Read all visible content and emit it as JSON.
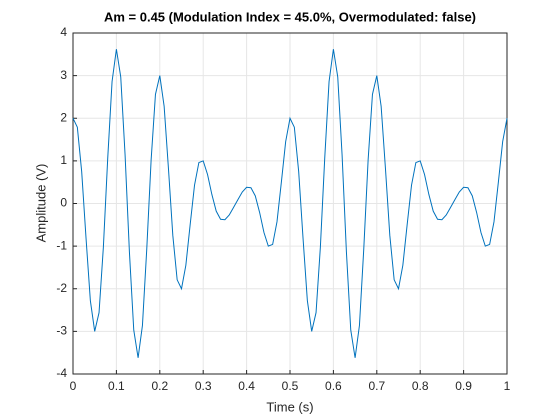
{
  "chart_data": {
    "type": "line",
    "title": "Am = 0.45 (Modulation Index = 45.0%, Overmodulated: false)",
    "x_label": "Time (s)",
    "y_label": "Amplitude (V)",
    "x": [
      0,
      0.01,
      0.02,
      0.03,
      0.04,
      0.05,
      0.06,
      0.07,
      0.08,
      0.09,
      0.1,
      0.11,
      0.12,
      0.13,
      0.14,
      0.15,
      0.16,
      0.17,
      0.18,
      0.19,
      0.2,
      0.21,
      0.22,
      0.23,
      0.24,
      0.25,
      0.26,
      0.27,
      0.28,
      0.29,
      0.3,
      0.31,
      0.32,
      0.33,
      0.34,
      0.35,
      0.36,
      0.37,
      0.38,
      0.39,
      0.4,
      0.41,
      0.42,
      0.43,
      0.44,
      0.45,
      0.46,
      0.47,
      0.48,
      0.49,
      0.5,
      0.51,
      0.52,
      0.53,
      0.54,
      0.55,
      0.56,
      0.57,
      0.58,
      0.59,
      0.6,
      0.61,
      0.62,
      0.63,
      0.64,
      0.65,
      0.66,
      0.67,
      0.68,
      0.69,
      0.7,
      0.71,
      0.72,
      0.73,
      0.74,
      0.75,
      0.76,
      0.77,
      0.78,
      0.79,
      0.8,
      0.81,
      0.82,
      0.83,
      0.84,
      0.85,
      0.86,
      0.87,
      0.88,
      0.89,
      0.9,
      0.91,
      0.92,
      0.93,
      0.94,
      0.95,
      0.96,
      0.97,
      0.98,
      0.99,
      1
    ],
    "series": [
      {
        "color": "#0072bd",
        "values": [
          2,
          1.79,
          0.75,
          -0.81,
          -2.28,
          -3,
          -2.56,
          -1.02,
          1.06,
          2.86,
          3.62,
          2.97,
          1.14,
          -1.14,
          -2.97,
          -3.62,
          -2.86,
          -1.06,
          1.02,
          2.56,
          3,
          2.28,
          0.81,
          -0.75,
          -1.79,
          -2,
          -1.45,
          -0.49,
          0.43,
          0.96,
          1,
          0.68,
          0.21,
          -0.18,
          -0.37,
          -0.38,
          -0.27,
          -0.09,
          0.09,
          0.27,
          0.38,
          0.37,
          0.18,
          -0.21,
          -0.68,
          -1,
          -0.96,
          -0.43,
          0.49,
          1.45,
          2,
          1.79,
          0.75,
          -0.81,
          -2.28,
          -3,
          -2.56,
          -1.02,
          1.06,
          2.86,
          3.62,
          2.97,
          1.14,
          -1.14,
          -2.97,
          -3.62,
          -2.86,
          -1.06,
          1.02,
          2.56,
          3,
          2.28,
          0.81,
          -0.75,
          -1.79,
          -2,
          -1.45,
          -0.49,
          0.43,
          0.96,
          1,
          0.68,
          0.21,
          -0.18,
          -0.37,
          -0.38,
          -0.27,
          -0.09,
          0.09,
          0.27,
          0.38,
          0.37,
          0.18,
          -0.21,
          -0.68,
          -1,
          -0.96,
          -0.43,
          0.49,
          1.45,
          2
        ]
      }
    ],
    "xlim": [
      0,
      1
    ],
    "xticks": [
      0,
      0.1,
      0.2,
      0.3,
      0.4,
      0.5,
      0.6,
      0.7,
      0.8,
      0.9,
      1
    ],
    "ylim": [
      -4,
      4
    ],
    "yticks": [
      -4,
      -3,
      -2,
      -1,
      0,
      1,
      2,
      3,
      4
    ],
    "grid": true
  }
}
